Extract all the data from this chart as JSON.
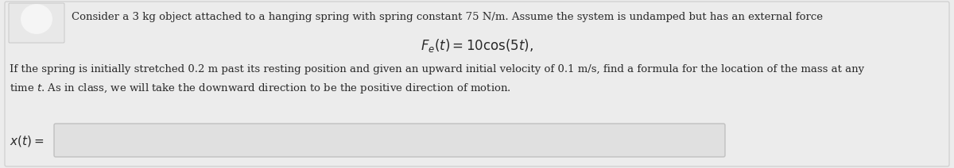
{
  "bg_color": "#d4d4d4",
  "card_color": "#ececec",
  "text_color": "#2a2a2a",
  "line1": "Consider a 3 kg object attached to a hanging spring with spring constant 75 N/m. Assume the system is undamped but has an external force",
  "line2_latex": "$F_e(t) = 10\\cos(5t),$",
  "line3": "If the spring is initially stretched 0.2 m past its resting position and given an upward initial velocity of 0.1 m/s, find a formula for the location of the mass at any",
  "line4": "time $t$. As in class, we will take the downward direction to be the positive direction of motion.",
  "answer_label": "$x(t) =$",
  "input_box_color": "#e0e0e0",
  "input_box_border": "#c0c0c0",
  "thumb_color": "#c8c8c8",
  "figsize": [
    12.0,
    2.12
  ],
  "dpi": 100
}
